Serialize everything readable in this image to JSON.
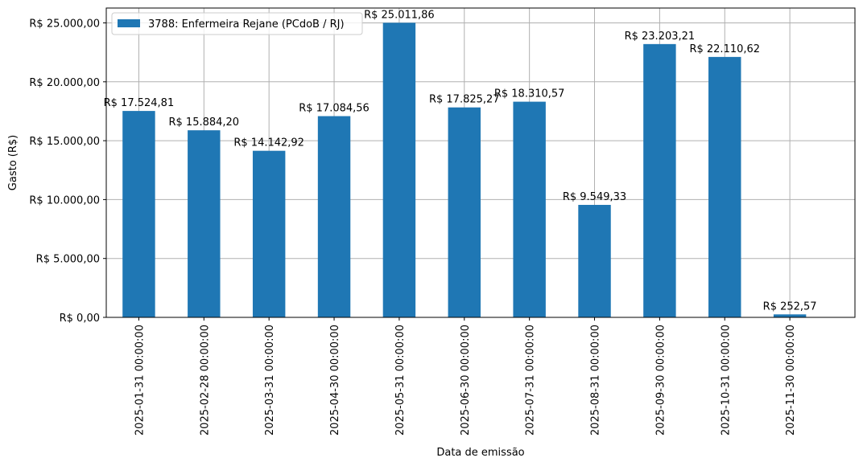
{
  "chart_data": {
    "type": "bar",
    "categories": [
      "2025-01-31 00:00:00",
      "2025-02-28 00:00:00",
      "2025-03-31 00:00:00",
      "2025-04-30 00:00:00",
      "2025-05-31 00:00:00",
      "2025-06-30 00:00:00",
      "2025-07-31 00:00:00",
      "2025-08-31 00:00:00",
      "2025-09-30 00:00:00",
      "2025-10-31 00:00:00",
      "2025-11-30 00:00:00"
    ],
    "series": [
      {
        "name": "3788: Enfermeira Rejane (PCdoB / RJ)",
        "color": "#1f77b4",
        "values": [
          17524.81,
          15884.2,
          14142.92,
          17084.56,
          25011.86,
          17825.27,
          18310.57,
          9549.33,
          23203.21,
          22110.62,
          252.57
        ],
        "labels": [
          "R$ 17.524,81",
          "R$ 15.884,20",
          "R$ 14.142,92",
          "R$ 17.084,56",
          "R$ 25.011,86",
          "R$ 17.825,27",
          "R$ 18.310,57",
          "R$ 9.549,33",
          "R$ 23.203,21",
          "R$ 22.110,62",
          "R$ 252,57"
        ]
      }
    ],
    "xlabel": "Data de emissão",
    "ylabel": "Gasto (R$)",
    "ylim": [
      0,
      26263
    ],
    "yticks": [
      0,
      5000,
      10000,
      15000,
      20000,
      25000
    ],
    "ytick_labels": [
      "R$ 0,00",
      "R$ 5.000,00",
      "R$ 10.000,00",
      "R$ 15.000,00",
      "R$ 20.000,00",
      "R$ 25.000,00"
    ],
    "grid": true,
    "legend_position": "upper-left"
  }
}
